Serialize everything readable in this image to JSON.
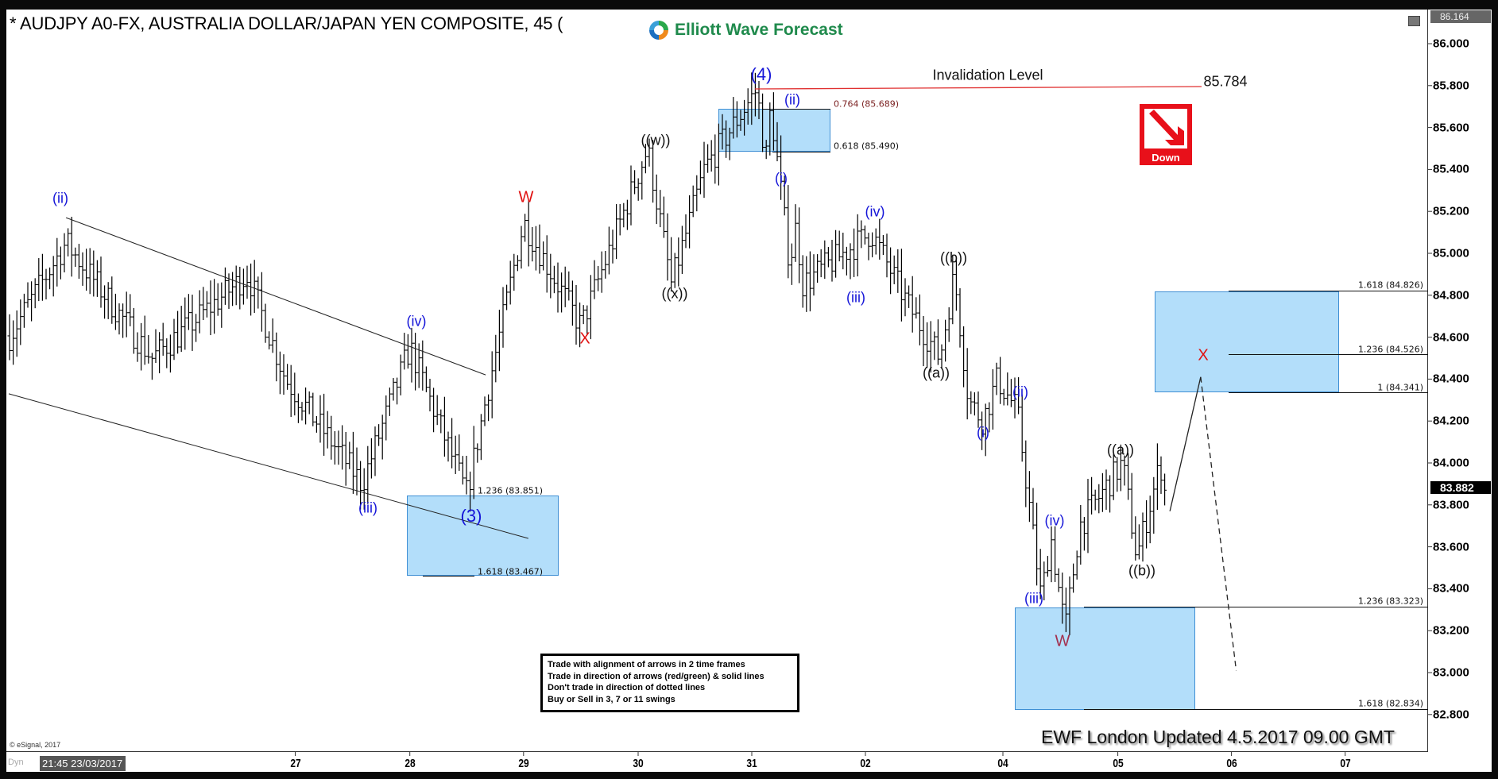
{
  "header": {
    "title": "* AUDJPY A0-FX, AUSTRALIA DOLLAR/JAPAN YEN COMPOSITE, 45 (",
    "logo_text": "Elliott Wave Forecast"
  },
  "price_axis": {
    "ticks": [
      "86.000",
      "85.800",
      "85.600",
      "85.400",
      "85.200",
      "85.000",
      "84.800",
      "84.600",
      "84.400",
      "84.200",
      "84.000",
      "83.800",
      "83.600",
      "83.400",
      "83.200",
      "83.000",
      "82.800"
    ],
    "high_tag": "86.164",
    "last_price": "83.882"
  },
  "time_axis": {
    "ticks": [
      "27",
      "28",
      "29",
      "30",
      "31",
      "02",
      "04",
      "05",
      "06",
      "07"
    ],
    "cursor_date": "21:45 23/03/2017",
    "dyn_label": "Dyn"
  },
  "wave_labels": [
    "(ii)",
    "(iv)",
    "(iii)",
    "(3)",
    "W",
    "X",
    "((w))",
    "((x))",
    "(4)",
    "(ii)",
    "(i)",
    "(iv)",
    "(iii)",
    "((b))",
    "((a))",
    "(ii)",
    "(i)",
    "(iv)",
    "(iii)",
    "W",
    "((a))",
    "((b))",
    "X"
  ],
  "invalidation": {
    "label": "Invalidation Level",
    "value": "85.784"
  },
  "fib_labels": {
    "box1_top": "1.236 (83.851)",
    "box1_bottom": "1.618 (83.467)",
    "box2_top": "0.764 (85.689)",
    "box2_bottom": "0.618 (85.490)",
    "box3_top": "1.618 (84.826)",
    "box3_mid": "1.236 (84.526)",
    "box3_bottom": "1 (84.341)",
    "box4_top": "1.236 (83.323)",
    "box4_bottom": "1.618 (82.834)"
  },
  "down_icon": {
    "label": "Down",
    "color": "#e8101a"
  },
  "rules": [
    "Trade with alignment of arrows in 2 time frames",
    "Trade in direction of arrows (red/green) & solid lines",
    "Don't trade in direction of dotted lines",
    "Buy or Sell in 3, 7 or 11 swings"
  ],
  "footer": "EWF London Updated 4.5.2017 09.00 GMT",
  "copyright": "© eSignal, 2017",
  "colors": {
    "wave_blue": "#1515d8",
    "wave_red": "#e01010",
    "box_fill": "#b3defa",
    "invalidation_line": "#e03030",
    "logo_green": "#1f8a4c"
  },
  "chart_data": {
    "type": "ohlc",
    "interval": "45",
    "ylim": [
      82.7,
      86.2
    ],
    "price_path": [
      [
        "2017-03-24T12:00",
        84.6
      ],
      [
        "2017-03-25T00:00",
        85.05
      ],
      [
        "2017-03-25T18:00",
        84.5
      ],
      [
        "2017-03-26T14:00",
        84.9
      ],
      [
        "2017-03-26T22:00",
        84.4
      ],
      [
        "2017-03-27T14:00",
        83.9
      ],
      [
        "2017-03-28T00:00",
        84.55
      ],
      [
        "2017-03-28T12:00",
        83.85
      ],
      [
        "2017-03-28T16:00",
        84.3
      ],
      [
        "2017-03-29T00:00",
        85.15
      ],
      [
        "2017-03-29T12:00",
        84.65
      ],
      [
        "2017-03-30T02:00",
        85.5
      ],
      [
        "2017-03-30T07:00",
        84.85
      ],
      [
        "2017-03-30T14:00",
        85.4
      ],
      [
        "2017-03-31T02:00",
        85.78
      ],
      [
        "2017-03-31T06:00",
        85.45
      ],
      [
        "2017-03-31T08:00",
        85.7
      ],
      [
        "2017-03-31T16:00",
        84.95
      ],
      [
        "2017-03-31T19:00",
        85.15
      ],
      [
        "2017-03-31T21:00",
        84.85
      ],
      [
        "2017-04-02T02:00",
        85.1
      ],
      [
        "2017-04-02T15:00",
        84.75
      ],
      [
        "2017-04-03T02:00",
        84.5
      ],
      [
        "2017-04-03T07:00",
        84.9
      ],
      [
        "2017-04-03T12:00",
        84.3
      ],
      [
        "2017-04-03T17:00",
        84.2
      ],
      [
        "2017-04-03T22:00",
        84.4
      ],
      [
        "2017-04-04T03:00",
        84.25
      ],
      [
        "2017-04-04T08:00",
        83.35
      ],
      [
        "2017-04-04T10:00",
        83.65
      ],
      [
        "2017-04-04T13:00",
        83.2
      ],
      [
        "2017-04-04T16:00",
        83.7
      ],
      [
        "2017-04-05T01:00",
        84.0
      ],
      [
        "2017-04-05T04:00",
        83.55
      ],
      [
        "2017-04-05T09:00",
        84.0
      ],
      [
        "2017-04-05T10:00",
        83.85
      ]
    ],
    "projection_solid": [
      [
        "2017-04-05T11:00",
        83.77
      ],
      [
        "2017-04-05T17:30",
        84.41
      ]
    ],
    "projection_dashed": [
      [
        "2017-04-05T17:30",
        84.41
      ],
      [
        "2017-04-06T01:00",
        83.01
      ]
    ],
    "trendlines": [
      [
        [
          "2017-03-25T00:00",
          85.17
        ],
        [
          "2017-03-28T16:00",
          84.42
        ]
      ],
      [
        [
          "2017-03-24T12:00",
          84.33
        ],
        [
          "2017-03-29T01:00",
          83.64
        ]
      ]
    ],
    "invalidation_level": 85.784
  }
}
